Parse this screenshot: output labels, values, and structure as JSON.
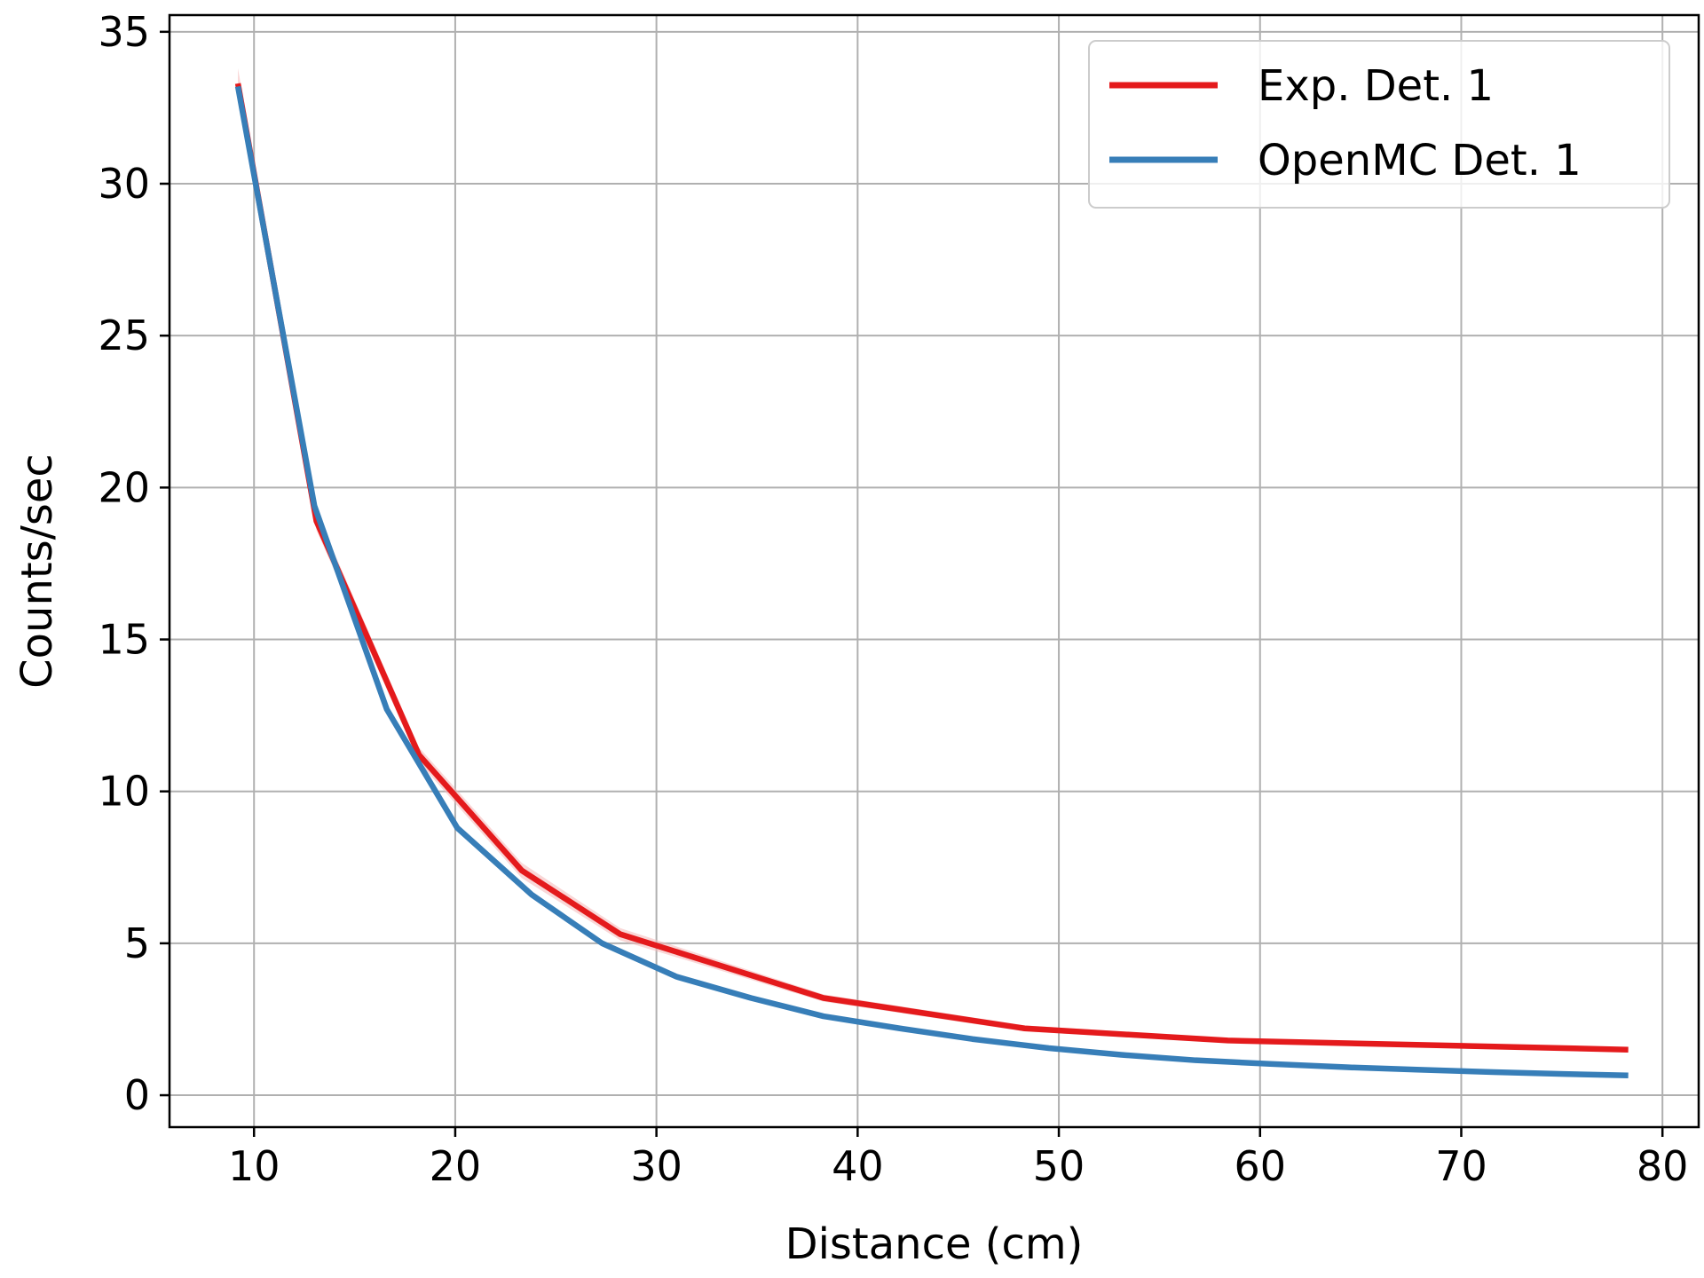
{
  "chart_data": {
    "type": "line",
    "xlabel": "Distance (cm)",
    "ylabel": "Counts/sec",
    "xlim": [
      5.8,
      81.8
    ],
    "ylim": [
      -1.05,
      35.55
    ],
    "xticks": [
      10,
      20,
      30,
      40,
      50,
      60,
      70,
      80
    ],
    "yticks": [
      0,
      5,
      10,
      15,
      20,
      25,
      30,
      35
    ],
    "grid": true,
    "legend_position": "top-right",
    "series": [
      {
        "name": "Exp. Det. 1",
        "color": "#e41a1c",
        "band_color": "#f4b6b6",
        "x": [
          9.2,
          13.1,
          18.2,
          23.3,
          28.2,
          38.3,
          48.3,
          58.4,
          78.3
        ],
        "y": [
          33.3,
          18.9,
          11.2,
          7.4,
          5.3,
          3.2,
          2.2,
          1.8,
          1.5
        ],
        "err": [
          0.5,
          0.3,
          0.25,
          0.25,
          0.2,
          0.12,
          0.1,
          0.08,
          0.06
        ]
      },
      {
        "name": "OpenMC Det. 1",
        "color": "#377eb8",
        "x": [
          9.2,
          13.0,
          16.6,
          20.1,
          23.8,
          27.3,
          31.0,
          34.7,
          38.3,
          42.1,
          45.7,
          49.5,
          53.1,
          56.8,
          60.5,
          64.3,
          67.8,
          71.6,
          75.1,
          78.3
        ],
        "y": [
          33.2,
          19.4,
          12.7,
          8.8,
          6.6,
          5.0,
          3.9,
          3.2,
          2.6,
          2.2,
          1.85,
          1.55,
          1.33,
          1.15,
          1.03,
          0.92,
          0.84,
          0.76,
          0.7,
          0.65
        ]
      }
    ]
  }
}
